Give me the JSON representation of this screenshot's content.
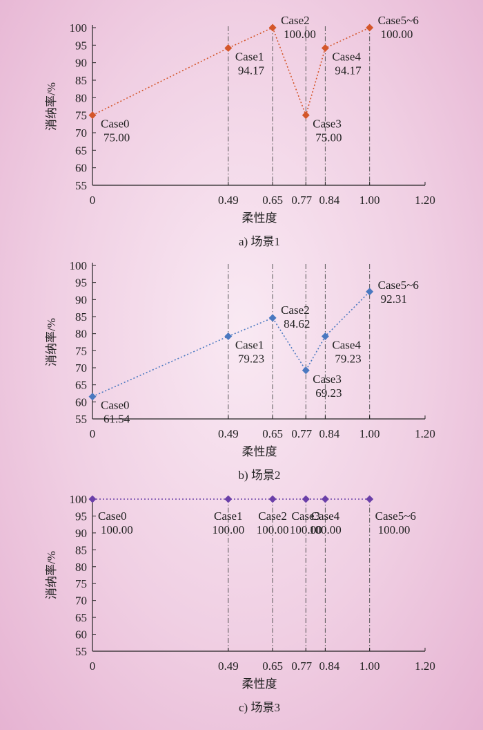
{
  "chart_data": [
    {
      "type": "line",
      "caption": "a) 场景1",
      "xlabel": "柔性度",
      "ylabel": "消纳率/%",
      "xlim": [
        0,
        1.2
      ],
      "ylim": [
        55,
        100
      ],
      "x_ticks": [
        "0",
        "0.49",
        "0.65",
        "0.77",
        "0.84",
        "1.00",
        "1.20"
      ],
      "y_ticks": [
        "55",
        "60",
        "65",
        "70",
        "75",
        "80",
        "85",
        "90",
        "95",
        "100"
      ],
      "color": "#d4562a",
      "points": [
        {
          "x": 0,
          "y": 75.0,
          "case": "Case0",
          "label": "75.00"
        },
        {
          "x": 0.49,
          "y": 94.17,
          "case": "Case1",
          "label": "94.17"
        },
        {
          "x": 0.65,
          "y": 100.0,
          "case": "Case2",
          "label": "100.00"
        },
        {
          "x": 0.77,
          "y": 75.0,
          "case": "Case3",
          "label": "75.00"
        },
        {
          "x": 0.84,
          "y": 94.17,
          "case": "Case4",
          "label": "94.17"
        },
        {
          "x": 1.0,
          "y": 100.0,
          "case": "Case5~6",
          "label": "100.00"
        }
      ]
    },
    {
      "type": "line",
      "caption": "b) 场景2",
      "xlabel": "柔性度",
      "ylabel": "消纳率/%",
      "xlim": [
        0,
        1.2
      ],
      "ylim": [
        55,
        100
      ],
      "x_ticks": [
        "0",
        "0.49",
        "0.65",
        "0.77",
        "0.84",
        "1.00",
        "1.20"
      ],
      "y_ticks": [
        "55",
        "60",
        "65",
        "70",
        "75",
        "80",
        "85",
        "90",
        "95",
        "100"
      ],
      "color": "#4a78c0",
      "points": [
        {
          "x": 0,
          "y": 61.54,
          "case": "Case0",
          "label": "61.54"
        },
        {
          "x": 0.49,
          "y": 79.23,
          "case": "Case1",
          "label": "79.23"
        },
        {
          "x": 0.65,
          "y": 84.62,
          "case": "Case2",
          "label": "84.62"
        },
        {
          "x": 0.77,
          "y": 69.23,
          "case": "Case3",
          "label": "69.23"
        },
        {
          "x": 0.84,
          "y": 79.23,
          "case": "Case4",
          "label": "79.23"
        },
        {
          "x": 1.0,
          "y": 92.31,
          "case": "Case5~6",
          "label": "92.31"
        }
      ]
    },
    {
      "type": "line",
      "caption": "c) 场景3",
      "xlabel": "柔性度",
      "ylabel": "消纳率/%",
      "xlim": [
        0,
        1.2
      ],
      "ylim": [
        55,
        100
      ],
      "x_ticks": [
        "0",
        "0.49",
        "0.65",
        "0.77",
        "0.84",
        "1.00",
        "1.20"
      ],
      "y_ticks": [
        "55",
        "60",
        "65",
        "70",
        "75",
        "80",
        "85",
        "90",
        "95",
        "100"
      ],
      "color": "#6a3fa8",
      "points": [
        {
          "x": 0,
          "y": 100.0,
          "case": "Case0",
          "label": "100.00"
        },
        {
          "x": 0.49,
          "y": 100.0,
          "case": "Case1",
          "label": "100.00"
        },
        {
          "x": 0.65,
          "y": 100.0,
          "case": "Case2",
          "label": "100.00"
        },
        {
          "x": 0.77,
          "y": 100.0,
          "case": "Case3",
          "label": "100.00"
        },
        {
          "x": 0.84,
          "y": 100.0,
          "case": "Case4",
          "label": "100.00"
        },
        {
          "x": 1.0,
          "y": 100.0,
          "case": "Case5~6",
          "label": "100.00"
        }
      ]
    }
  ]
}
